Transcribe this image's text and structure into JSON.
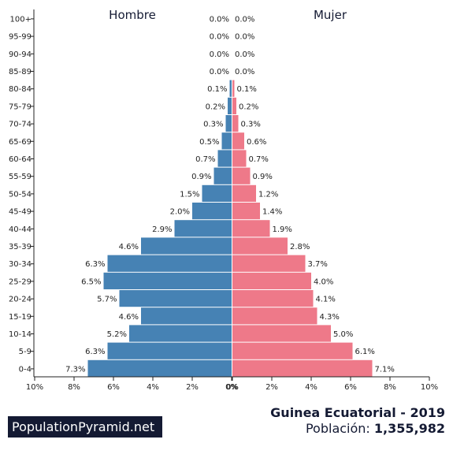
{
  "chart_data": {
    "type": "bar",
    "orientation": "horizontal-population-pyramid",
    "categories": [
      "0-4",
      "5-9",
      "10-14",
      "15-19",
      "20-24",
      "25-29",
      "30-34",
      "35-39",
      "40-44",
      "45-49",
      "50-54",
      "55-59",
      "60-64",
      "65-69",
      "70-74",
      "75-79",
      "80-84",
      "85-89",
      "90-94",
      "95-99",
      "100+"
    ],
    "series": [
      {
        "name": "Hombre",
        "color": "#4682b4",
        "values": [
          7.3,
          6.3,
          5.2,
          4.6,
          5.7,
          6.5,
          6.3,
          4.6,
          2.9,
          2.0,
          1.5,
          0.9,
          0.7,
          0.5,
          0.3,
          0.2,
          0.1,
          0.0,
          0.0,
          0.0,
          0.0
        ],
        "labels": [
          "7.3%",
          "6.3%",
          "5.2%",
          "4.6%",
          "5.7%",
          "6.5%",
          "6.3%",
          "4.6%",
          "2.9%",
          "2.0%",
          "1.5%",
          "0.9%",
          "0.7%",
          "0.5%",
          "0.3%",
          "0.2%",
          "0.1%",
          "0.0%",
          "0.0%",
          "0.0%",
          "0.0%"
        ]
      },
      {
        "name": "Mujer",
        "color": "#ee7989",
        "values": [
          7.1,
          6.1,
          5.0,
          4.3,
          4.1,
          4.0,
          3.7,
          2.8,
          1.9,
          1.4,
          1.2,
          0.9,
          0.7,
          0.6,
          0.3,
          0.2,
          0.1,
          0.0,
          0.0,
          0.0,
          0.0
        ],
        "labels": [
          "7.1%",
          "6.1%",
          "5.0%",
          "4.3%",
          "4.1%",
          "4.0%",
          "3.7%",
          "2.8%",
          "1.9%",
          "1.4%",
          "1.2%",
          "0.9%",
          "0.7%",
          "0.6%",
          "0.3%",
          "0.2%",
          "0.1%",
          "0.0%",
          "0.0%",
          "0.0%",
          "0.0%"
        ]
      }
    ],
    "xlim": [
      -10,
      10
    ],
    "xticks": {
      "left": [
        "10%",
        "8%",
        "6%",
        "4%",
        "2%",
        "0%"
      ],
      "right": [
        "0%",
        "2%",
        "4%",
        "6%",
        "8%",
        "10%"
      ]
    },
    "grid": false,
    "legend": "series names printed at top of each half"
  },
  "footer": {
    "brand": "PopulationPyramid.net",
    "title": "Guinea Ecuatorial - 2019",
    "population_label": "Población:",
    "population_value": "1,355,982"
  }
}
